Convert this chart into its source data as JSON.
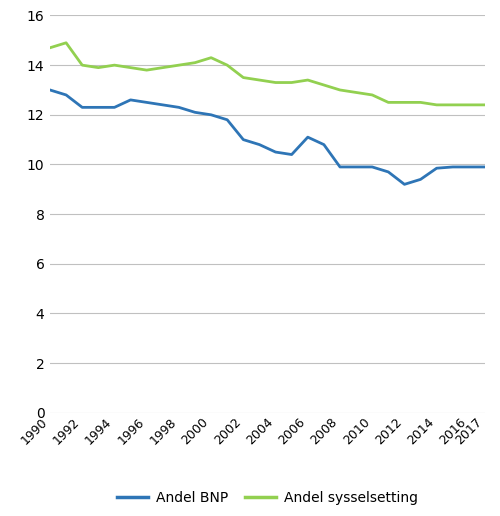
{
  "years": [
    1990,
    1991,
    1992,
    1993,
    1994,
    1995,
    1996,
    1997,
    1998,
    1999,
    2000,
    2001,
    2002,
    2003,
    2004,
    2005,
    2006,
    2007,
    2008,
    2009,
    2010,
    2011,
    2012,
    2013,
    2014,
    2015,
    2016,
    2017
  ],
  "andel_bnp": [
    13.0,
    12.8,
    12.3,
    12.3,
    12.3,
    12.6,
    12.5,
    12.4,
    12.3,
    12.1,
    12.0,
    11.8,
    11.0,
    10.8,
    10.5,
    10.4,
    11.1,
    10.8,
    9.9,
    9.9,
    9.9,
    9.7,
    9.2,
    9.4,
    9.85,
    9.9,
    9.9,
    9.9
  ],
  "andel_sysselsetting": [
    14.7,
    14.9,
    14.0,
    13.9,
    14.0,
    13.9,
    13.8,
    13.9,
    14.0,
    14.1,
    14.3,
    14.0,
    13.5,
    13.4,
    13.3,
    13.3,
    13.4,
    13.2,
    13.0,
    12.9,
    12.8,
    12.5,
    12.5,
    12.5,
    12.4,
    12.4,
    12.4,
    12.4
  ],
  "bnp_color": "#2e75b6",
  "sysselsetting_color": "#92d050",
  "ylim": [
    0,
    16
  ],
  "yticks": [
    0,
    2,
    4,
    6,
    8,
    10,
    12,
    14,
    16
  ],
  "xtick_years": [
    1990,
    1992,
    1994,
    1996,
    1998,
    2000,
    2002,
    2004,
    2006,
    2008,
    2010,
    2012,
    2014,
    2016,
    2017
  ],
  "legend_label_bnp": "Andel BNP",
  "legend_label_sysselsetting": "Andel sysselsetting",
  "line_width": 2.0,
  "background_color": "#ffffff",
  "grid_color": "#c0c0c0"
}
